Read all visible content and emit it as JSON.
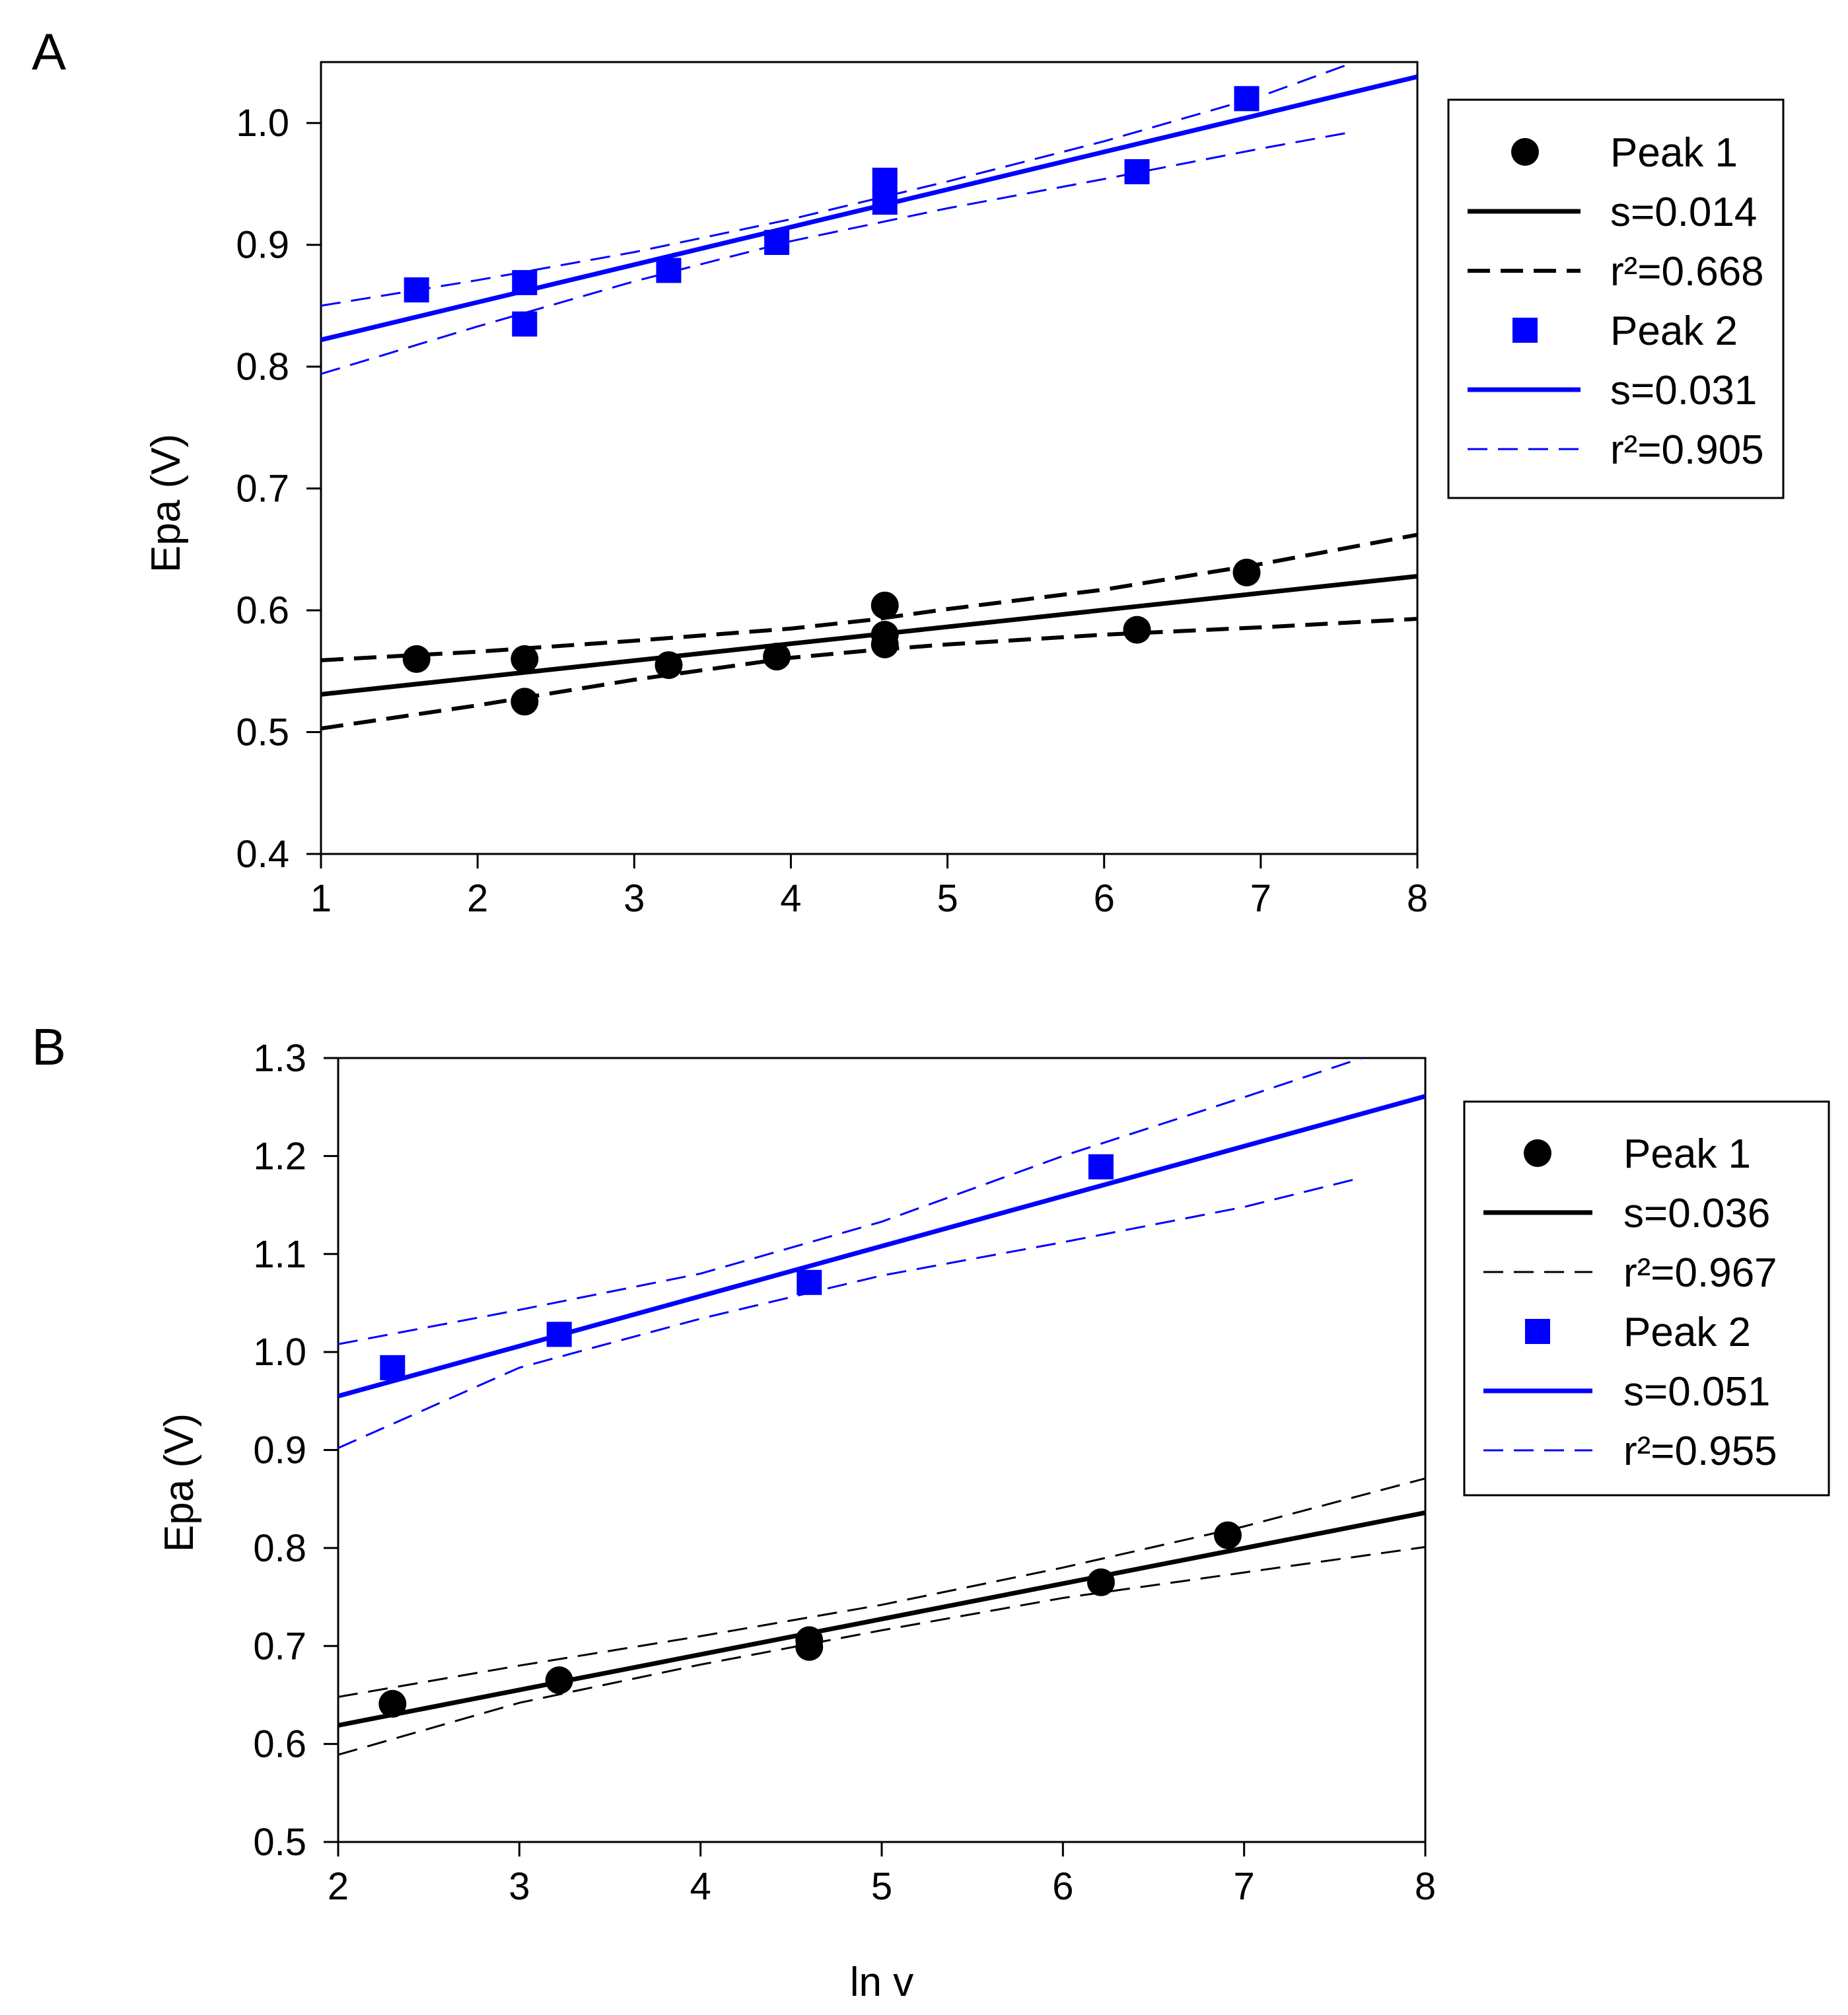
{
  "xlabel_shared": "ln v",
  "chart_data": [
    {
      "type": "scatter",
      "panel_label": "A",
      "xlabel": "",
      "ylabel": "Epa (V)",
      "xlim": [
        1,
        8
      ],
      "ylim": [
        0.4,
        1.05
      ],
      "x_ticks": [
        1,
        2,
        3,
        4,
        5,
        6,
        7,
        8
      ],
      "y_ticks": [
        0.4,
        0.5,
        0.6,
        0.7,
        0.8,
        0.9,
        1.0
      ],
      "x_tick_labels": [
        "1",
        "2",
        "3",
        "4",
        "5",
        "6",
        "7",
        "8"
      ],
      "y_tick_labels": [
        "0.4",
        "0.5",
        "0.6",
        "0.7",
        "0.8",
        "0.9",
        "1.0"
      ],
      "grid": false,
      "legend_position": "right",
      "series": [
        {
          "name": "Peak 1",
          "marker": "circle",
          "color": "#000000",
          "points": [
            [
              1.61,
              0.56
            ],
            [
              2.3,
              0.56
            ],
            [
              2.3,
              0.525
            ],
            [
              3.22,
              0.555
            ],
            [
              3.91,
              0.562
            ],
            [
              4.6,
              0.604
            ],
            [
              4.6,
              0.58
            ],
            [
              4.6,
              0.572
            ],
            [
              6.21,
              0.584
            ],
            [
              6.91,
              0.631
            ]
          ],
          "fit": {
            "label": "s=0.014",
            "x": [
              1,
              8
            ],
            "y": [
              0.531,
              0.628
            ]
          },
          "ci": {
            "label": "r²=0.668",
            "x": [
              1,
              2,
              3,
              4,
              4.5,
              5,
              6,
              7,
              8
            ],
            "upper": [
              0.559,
              0.566,
              0.575,
              0.585,
              0.592,
              0.601,
              0.617,
              0.638,
              0.662
            ],
            "lower": [
              0.503,
              0.522,
              0.543,
              0.561,
              0.567,
              0.572,
              0.58,
              0.586,
              0.593
            ]
          }
        },
        {
          "name": "Peak 2",
          "marker": "square",
          "color": "#0000ff",
          "points": [
            [
              1.61,
              0.863
            ],
            [
              2.3,
              0.869
            ],
            [
              2.3,
              0.835
            ],
            [
              3.22,
              0.879
            ],
            [
              3.91,
              0.902
            ],
            [
              4.6,
              0.953
            ],
            [
              4.6,
              0.935
            ],
            [
              6.21,
              0.96
            ],
            [
              6.91,
              1.02
            ]
          ],
          "fit": {
            "label": "s=0.031",
            "x": [
              1,
              8
            ],
            "y": [
              0.822,
              1.038
            ]
          },
          "ci": {
            "label": "r²=0.905",
            "x": [
              1,
              2,
              3,
              4,
              5,
              6,
              7,
              7.6
            ],
            "upper": [
              0.85,
              0.871,
              0.894,
              0.921,
              0.952,
              0.985,
              1.022,
              1.05
            ],
            "lower": [
              0.794,
              0.833,
              0.87,
              0.903,
              0.93,
              0.954,
              0.979,
              0.993
            ]
          }
        }
      ],
      "legend": [
        {
          "kind": "circle",
          "color": "#000000",
          "label": "Peak 1"
        },
        {
          "kind": "solid",
          "color": "#000000",
          "label": "s=0.014"
        },
        {
          "kind": "dashed-bold",
          "color": "#000000",
          "label": "r²=0.668"
        },
        {
          "kind": "square",
          "color": "#0000ff",
          "label": "Peak 2"
        },
        {
          "kind": "solid",
          "color": "#0000ff",
          "label": "s=0.031"
        },
        {
          "kind": "dashed-thin",
          "color": "#0000ff",
          "label": "r²=0.905"
        }
      ]
    },
    {
      "type": "scatter",
      "panel_label": "B",
      "xlabel": "ln v",
      "ylabel": "Epa (V)",
      "xlim": [
        2,
        8
      ],
      "ylim": [
        0.5,
        1.3
      ],
      "x_ticks": [
        2,
        3,
        4,
        5,
        6,
        7,
        8
      ],
      "y_ticks": [
        0.5,
        0.6,
        0.7,
        0.8,
        0.9,
        1.0,
        1.1,
        1.2,
        1.3
      ],
      "x_tick_labels": [
        "2",
        "3",
        "4",
        "5",
        "6",
        "7",
        "8"
      ],
      "y_tick_labels": [
        "0.5",
        "0.6",
        "0.7",
        "0.8",
        "0.9",
        "1.0",
        "1.1",
        "1.2",
        "1.3"
      ],
      "grid": false,
      "legend_position": "right",
      "series": [
        {
          "name": "Peak 1",
          "marker": "circle",
          "color": "#000000",
          "points": [
            [
              2.3,
              0.641
            ],
            [
              3.22,
              0.665
            ],
            [
              4.6,
              0.706
            ],
            [
              4.6,
              0.699
            ],
            [
              6.21,
              0.765
            ],
            [
              6.91,
              0.813
            ]
          ],
          "fit": {
            "label": "s=0.036",
            "x": [
              2,
              8
            ],
            "y": [
              0.619,
              0.836
            ]
          },
          "ci": {
            "label": "r²=0.967",
            "x": [
              2,
              3,
              4,
              5,
              6,
              7,
              8
            ],
            "upper": [
              0.648,
              0.68,
              0.71,
              0.742,
              0.78,
              0.822,
              0.871
            ],
            "lower": [
              0.589,
              0.642,
              0.681,
              0.716,
              0.749,
              0.775,
              0.801
            ]
          }
        },
        {
          "name": "Peak 2",
          "marker": "square",
          "color": "#0000ff",
          "points": [
            [
              2.3,
              0.984
            ],
            [
              3.22,
              1.018
            ],
            [
              4.6,
              1.071
            ],
            [
              6.21,
              1.189
            ]
          ],
          "fit": {
            "label": "s=0.051",
            "x": [
              2,
              8
            ],
            "y": [
              0.955,
              1.261
            ]
          },
          "ci": {
            "label": "r²=0.955",
            "x": [
              2,
              3,
              4,
              5,
              6,
              7,
              7.65
            ],
            "upper": [
              1.008,
              1.043,
              1.08,
              1.133,
              1.2,
              1.26,
              1.3
            ],
            "lower": [
              0.902,
              0.984,
              1.034,
              1.078,
              1.112,
              1.148,
              1.178
            ]
          }
        }
      ],
      "legend": [
        {
          "kind": "circle",
          "color": "#000000",
          "label": "Peak 1"
        },
        {
          "kind": "solid",
          "color": "#000000",
          "label": "s=0.036"
        },
        {
          "kind": "dashed-thin",
          "color": "#000000",
          "label": "r²=0.967"
        },
        {
          "kind": "square",
          "color": "#0000ff",
          "label": "Peak 2"
        },
        {
          "kind": "solid",
          "color": "#0000ff",
          "label": "s=0.051"
        },
        {
          "kind": "dashed-thin",
          "color": "#0000ff",
          "label": "r²=0.955"
        }
      ]
    }
  ]
}
